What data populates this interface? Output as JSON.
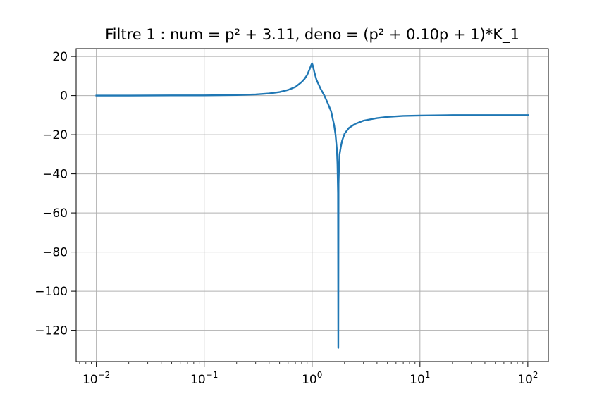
{
  "chart_data": {
    "type": "line",
    "title": "Filtre 1 : num = p² + 3.11, deno = (p² + 0.10p + 1)*K_1",
    "xlabel": "",
    "ylabel": "",
    "xscale": "log",
    "xlim": [
      0.0065,
      155
    ],
    "ylim": [
      -136,
      24
    ],
    "grid": true,
    "series": [
      {
        "color": "#1f77b4",
        "x": [
          0.01,
          0.02,
          0.05,
          0.1,
          0.2,
          0.3,
          0.4,
          0.5,
          0.6,
          0.7,
          0.8,
          0.85,
          0.9,
          0.95,
          0.98,
          1.0,
          1.02,
          1.05,
          1.1,
          1.2,
          1.3,
          1.4,
          1.5,
          1.6,
          1.65,
          1.7,
          1.72,
          1.74,
          1.75,
          1.76,
          1.78,
          1.8,
          1.85,
          1.9,
          2.0,
          2.2,
          2.5,
          3.0,
          4.0,
          5.0,
          7.0,
          10,
          20,
          50,
          100
        ],
        "y": [
          0.0,
          0.0,
          0.1,
          0.1,
          0.3,
          0.6,
          1.1,
          1.8,
          2.9,
          4.4,
          6.9,
          8.5,
          10.5,
          13.5,
          15.5,
          16.5,
          15.0,
          12.0,
          8.0,
          3.5,
          0.0,
          -4.0,
          -8.0,
          -15.0,
          -20.0,
          -28.0,
          -35.0,
          -50.0,
          -129.0,
          -45.0,
          -35.0,
          -30.0,
          -26.0,
          -23.0,
          -19.5,
          -16.5,
          -14.5,
          -12.8,
          -11.5,
          -10.9,
          -10.4,
          -10.2,
          -10.0,
          -10.0,
          -10.0
        ]
      }
    ],
    "yticks": [
      20,
      0,
      -20,
      -40,
      -60,
      -80,
      -100,
      -120
    ],
    "ytick_labels": [
      "20",
      "0",
      "−20",
      "−40",
      "−60",
      "−80",
      "−100",
      "−120"
    ],
    "xticks": [
      0.01,
      0.1,
      1,
      10,
      100
    ],
    "xtick_labels": [
      {
        "base": "10",
        "exp": "−2"
      },
      {
        "base": "10",
        "exp": "−1"
      },
      {
        "base": "10",
        "exp": "0"
      },
      {
        "base": "10",
        "exp": "1"
      },
      {
        "base": "10",
        "exp": "2"
      }
    ]
  }
}
